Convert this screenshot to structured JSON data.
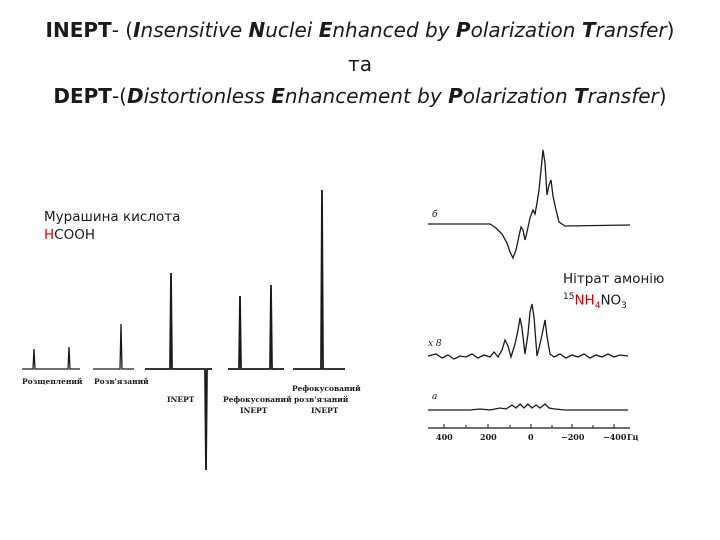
{
  "title": {
    "line1": [
      {
        "t": "INEPT",
        "b": true,
        "i": false
      },
      {
        "t": "- (",
        "b": false,
        "i": false
      },
      {
        "t": "I",
        "b": true,
        "i": true
      },
      {
        "t": "nsensitive ",
        "b": false,
        "i": true
      },
      {
        "t": "N",
        "b": true,
        "i": true
      },
      {
        "t": "uclei ",
        "b": false,
        "i": true
      },
      {
        "t": "E",
        "b": true,
        "i": true
      },
      {
        "t": "nhanced by ",
        "b": false,
        "i": true
      },
      {
        "t": "P",
        "b": true,
        "i": true
      },
      {
        "t": "olarization ",
        "b": false,
        "i": true
      },
      {
        "t": "T",
        "b": true,
        "i": true
      },
      {
        "t": "ransfer",
        "b": false,
        "i": true
      },
      {
        "t": ")",
        "b": false,
        "i": false
      }
    ],
    "conjunction": "та",
    "line3": [
      {
        "t": "DEPT",
        "b": true,
        "i": false
      },
      {
        "t": "-(",
        "b": false,
        "i": false
      },
      {
        "t": "D",
        "b": true,
        "i": true
      },
      {
        "t": "istortionless ",
        "b": false,
        "i": true
      },
      {
        "t": "E",
        "b": true,
        "i": true
      },
      {
        "t": "nhancement by ",
        "b": false,
        "i": true
      },
      {
        "t": "P",
        "b": true,
        "i": true
      },
      {
        "t": "olarization ",
        "b": false,
        "i": true
      },
      {
        "t": "T",
        "b": true,
        "i": true
      },
      {
        "t": "ransfer",
        "b": false,
        "i": true
      },
      {
        "t": ")",
        "b": false,
        "i": false
      }
    ]
  },
  "formic_acid": {
    "name": "Мурашина кислота",
    "formula_red": "H",
    "formula_rest": "COOH"
  },
  "ammonium_nitrate": {
    "name": "Нітрат амонію",
    "mass": "15",
    "formula_a": "NH",
    "sub4": "4",
    "formula_b": "NO",
    "sub3": "3"
  },
  "left_spectra_labels": {
    "split": "Розщеплений",
    "decoupled": "Розв'язаний",
    "inept": "INEPT",
    "refocused_l1": "Рефокусований",
    "refocused_l2": "INEPT",
    "refdec_l1": "Рефокусований",
    "refdec_l2": "розв'язаний",
    "refdec_l3": "INEPT"
  },
  "right_spectra": {
    "trace_b": "б",
    "trace_x8": "x 8",
    "trace_a": "а",
    "axis_ticks": [
      "400",
      "200",
      "0",
      "−200",
      "−400"
    ],
    "axis_unit": "Гц"
  }
}
